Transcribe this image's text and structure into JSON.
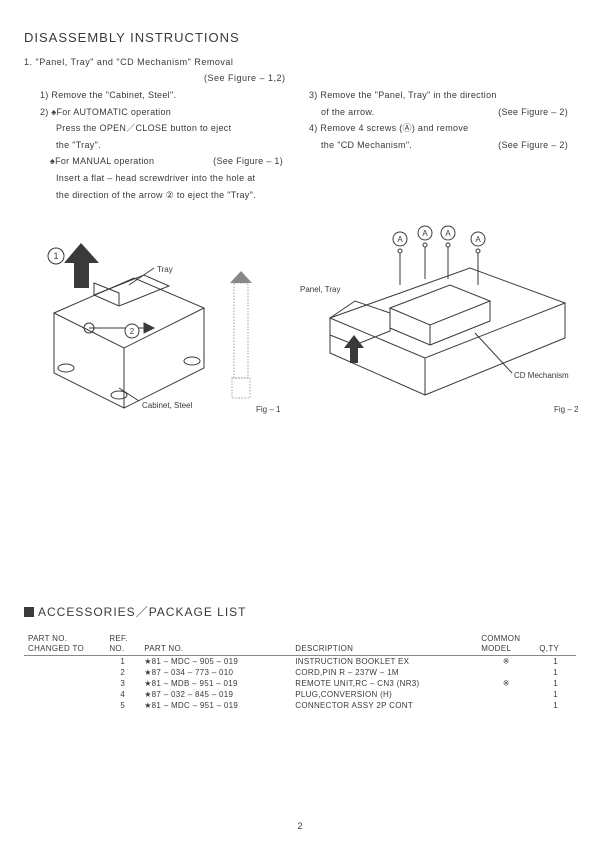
{
  "title": "DISASSEMBLY  INSTRUCTIONS",
  "step_main": "1.  \"Panel, Tray\"  and  \"CD Mechanism\"  Removal",
  "step_main_see": "(See Figure – 1,2)",
  "left": {
    "l1": "1) Remove the  \"Cabinet, Steel\".",
    "l2": "2) ♠For AUTOMATIC operation",
    "l3": "Press the OPEN／CLOSE button to eject",
    "l4": "the  \"Tray\".",
    "l5a": "♠For MANUAL operation",
    "l5b": "(See Figure – 1)",
    "l6": "Insert a flat – head screwdriver into the hole at",
    "l7": "the direction of the arrow ② to eject  the  \"Tray\"."
  },
  "right": {
    "r1": "3) Remove the  \"Panel, Tray\"  in the direction",
    "r2": "of the arrow.",
    "r2b": "(See Figure – 2)",
    "r3": "4) Remove  4 screws (Ⓐ) and remove",
    "r4": "the  \"CD Mechanism\".",
    "r4b": "(See Figure – 2)"
  },
  "fig1": {
    "label_tray": "Tray",
    "label_cabinet": "Cabinet, Steel",
    "caption": "Fig – 1",
    "callout1": "1",
    "callout2": "2"
  },
  "fig2": {
    "label_panel": "Panel, Tray",
    "label_cd": "CD Mechanism",
    "caption": "Fig – 2",
    "calloutA": "A"
  },
  "section2_title": "ACCESSORIES／PACKAGE LIST",
  "table": {
    "headers": {
      "h1a": "PART NO.",
      "h1b": "CHANGED TO",
      "h2a": "REF.",
      "h2b": "NO.",
      "h3": "PART NO.",
      "h4": "DESCRIPTION",
      "h5a": "COMMON",
      "h5b": "MODEL",
      "h6": "Q,TY"
    },
    "rows": [
      {
        "ref": "1",
        "pn": "★81 – MDC – 905 – 019",
        "desc": "INSTRUCTION BOOKLET EX",
        "cm": "※",
        "qty": "1"
      },
      {
        "ref": "2",
        "pn": "★87 – 034 – 773 – 010",
        "desc": "CORD,PIN R – 237W – 1M",
        "cm": "",
        "qty": "1"
      },
      {
        "ref": "3",
        "pn": "★81 – MDB – 951 – 019",
        "desc": "REMOTE UNIT,RC – CN3 (NR3)",
        "cm": "※",
        "qty": "1"
      },
      {
        "ref": "4",
        "pn": "★87 – 032 – 845 – 019",
        "desc": "PLUG,CONVERSION (H)",
        "cm": "",
        "qty": "1"
      },
      {
        "ref": "5",
        "pn": "★81 – MDC – 951 – 019",
        "desc": "CONNECTOR ASSY 2P CONT",
        "cm": "",
        "qty": "1"
      }
    ]
  },
  "page_number": "2",
  "colors": {
    "stroke": "#3a3a3a",
    "fill_dark": "#3a3a3a",
    "bg": "#ffffff"
  }
}
